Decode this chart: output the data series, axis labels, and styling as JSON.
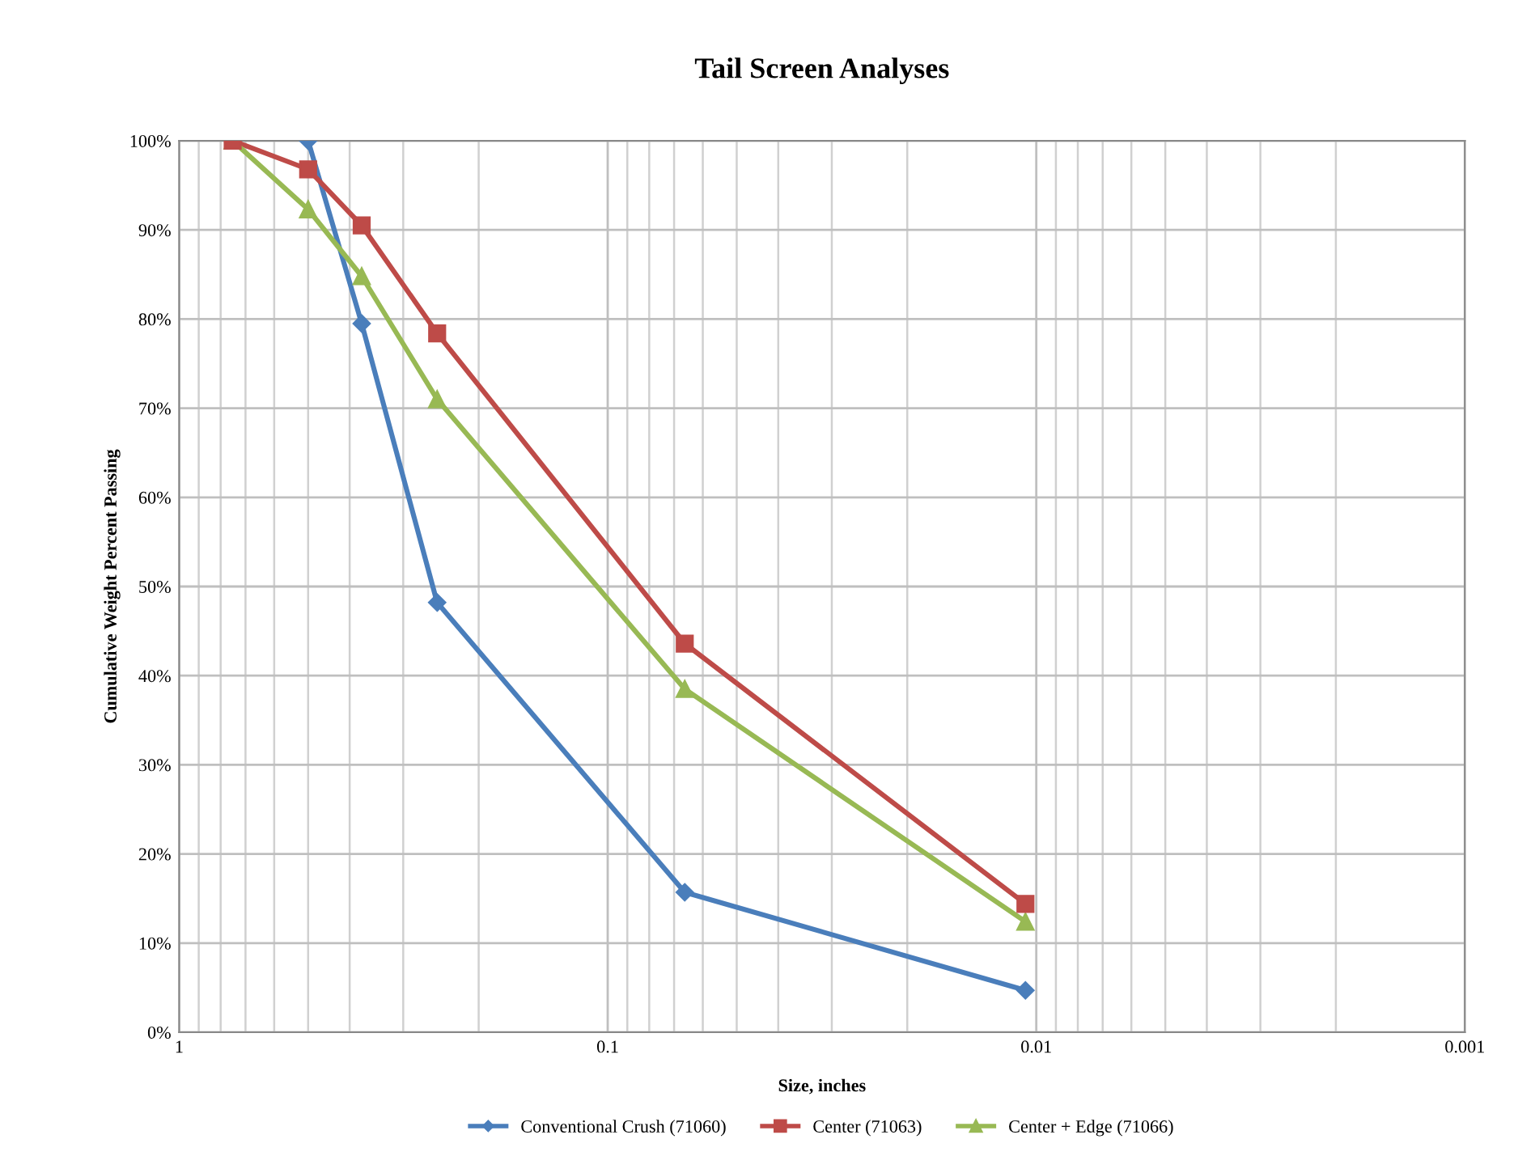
{
  "chart_data": {
    "type": "line",
    "title": "Tail Screen Analyses",
    "xlabel": "Size, inches",
    "ylabel": "Cumulative Weight Percent Passing",
    "log": "x",
    "xlim": [
      1,
      0.001
    ],
    "xticks": [
      1,
      0.1,
      0.01,
      0.001
    ],
    "ylim": [
      0,
      100
    ],
    "yticks": [
      {
        "value": 0,
        "label": "0%"
      },
      {
        "value": 10,
        "label": "10%"
      },
      {
        "value": 20,
        "label": "20%"
      },
      {
        "value": 30,
        "label": "30%"
      },
      {
        "value": 40,
        "label": "40%"
      },
      {
        "value": 50,
        "label": "50%"
      },
      {
        "value": 60,
        "label": "60%"
      },
      {
        "value": 70,
        "label": "70%"
      },
      {
        "value": 80,
        "label": "80%"
      },
      {
        "value": 90,
        "label": "90%"
      },
      {
        "value": 100,
        "label": "100%"
      }
    ],
    "grid": true,
    "legend": "bottom",
    "series": [
      {
        "name": "Conventional Crush (71060)",
        "color": "#4a7ebb",
        "marker": "diamond",
        "x": [
          0.5,
          0.375,
          0.25,
          0.0661,
          0.0106
        ],
        "values": [
          100,
          79.5,
          48.2,
          15.7,
          4.7
        ]
      },
      {
        "name": "Center (71063)",
        "color": "#be4b48",
        "marker": "square",
        "x": [
          0.75,
          0.5,
          0.375,
          0.25,
          0.0661,
          0.0106
        ],
        "values": [
          100,
          96.8,
          90.5,
          78.4,
          43.6,
          14.4
        ]
      },
      {
        "name": "Center + Edge (71066)",
        "color": "#98b954",
        "marker": "triangle",
        "x": [
          0.75,
          0.5,
          0.375,
          0.25,
          0.0661,
          0.0106
        ],
        "values": [
          100,
          92.3,
          84.8,
          71.0,
          38.5,
          12.4
        ]
      }
    ]
  }
}
